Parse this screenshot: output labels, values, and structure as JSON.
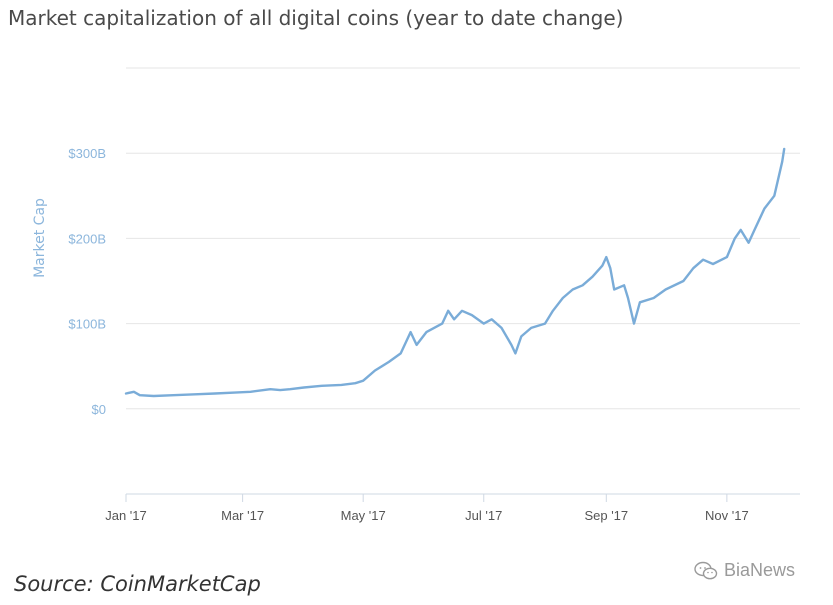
{
  "title": "Market capitalization of all digital coins (year to date change)",
  "source": "Source: CoinMarketCap",
  "watermark": {
    "icon": "wechat-icon",
    "text": "BiaNews"
  },
  "colors": {
    "line": "#7aacd8",
    "grid": "#e6e6e6",
    "y_tick_text": "#8cb6dc",
    "x_tick_text": "#555555",
    "axis": "#cfd8e3"
  },
  "chart_data": {
    "type": "line",
    "title": "Market capitalization of all digital coins (year to date change)",
    "xlabel": "",
    "ylabel": "Market Cap",
    "x_tick_labels": [
      "Jan '17",
      "Mar '17",
      "May '17",
      "Jul '17",
      "Sep '17",
      "Nov '17"
    ],
    "y_ticks": [
      {
        "value": 0,
        "label": "$0"
      },
      {
        "value": 100,
        "label": "$100B"
      },
      {
        "value": 200,
        "label": "$200B"
      },
      {
        "value": 300,
        "label": "$300B"
      }
    ],
    "ylim": [
      -100,
      400
    ],
    "xlim": [
      "2017-01-01",
      "2017-12-08"
    ],
    "grid": true,
    "series": [
      {
        "values_unit": "billion USD",
        "points": [
          [
            "2017-01-01",
            18
          ],
          [
            "2017-01-05",
            20
          ],
          [
            "2017-01-08",
            16
          ],
          [
            "2017-01-15",
            15
          ],
          [
            "2017-01-25",
            16
          ],
          [
            "2017-02-05",
            17
          ],
          [
            "2017-02-15",
            18
          ],
          [
            "2017-02-25",
            19
          ],
          [
            "2017-03-05",
            20
          ],
          [
            "2017-03-15",
            23
          ],
          [
            "2017-03-20",
            22
          ],
          [
            "2017-03-25",
            23
          ],
          [
            "2017-04-01",
            25
          ],
          [
            "2017-04-10",
            27
          ],
          [
            "2017-04-20",
            28
          ],
          [
            "2017-04-27",
            30
          ],
          [
            "2017-05-01",
            33
          ],
          [
            "2017-05-07",
            45
          ],
          [
            "2017-05-14",
            55
          ],
          [
            "2017-05-20",
            65
          ],
          [
            "2017-05-25",
            90
          ],
          [
            "2017-05-28",
            75
          ],
          [
            "2017-06-02",
            90
          ],
          [
            "2017-06-10",
            100
          ],
          [
            "2017-06-13",
            115
          ],
          [
            "2017-06-16",
            105
          ],
          [
            "2017-06-20",
            115
          ],
          [
            "2017-06-25",
            110
          ],
          [
            "2017-07-01",
            100
          ],
          [
            "2017-07-05",
            105
          ],
          [
            "2017-07-10",
            95
          ],
          [
            "2017-07-15",
            75
          ],
          [
            "2017-07-17",
            65
          ],
          [
            "2017-07-20",
            85
          ],
          [
            "2017-07-25",
            95
          ],
          [
            "2017-08-01",
            100
          ],
          [
            "2017-08-05",
            115
          ],
          [
            "2017-08-10",
            130
          ],
          [
            "2017-08-15",
            140
          ],
          [
            "2017-08-20",
            145
          ],
          [
            "2017-08-25",
            155
          ],
          [
            "2017-08-30",
            168
          ],
          [
            "2017-09-01",
            178
          ],
          [
            "2017-09-03",
            165
          ],
          [
            "2017-09-05",
            140
          ],
          [
            "2017-09-10",
            145
          ],
          [
            "2017-09-12",
            130
          ],
          [
            "2017-09-15",
            100
          ],
          [
            "2017-09-18",
            125
          ],
          [
            "2017-09-25",
            130
          ],
          [
            "2017-10-01",
            140
          ],
          [
            "2017-10-10",
            150
          ],
          [
            "2017-10-15",
            165
          ],
          [
            "2017-10-20",
            175
          ],
          [
            "2017-10-25",
            170
          ],
          [
            "2017-11-01",
            178
          ],
          [
            "2017-11-05",
            200
          ],
          [
            "2017-11-08",
            210
          ],
          [
            "2017-11-12",
            195
          ],
          [
            "2017-11-15",
            210
          ],
          [
            "2017-11-20",
            235
          ],
          [
            "2017-11-25",
            250
          ],
          [
            "2017-11-29",
            290
          ],
          [
            "2017-11-30",
            305
          ]
        ]
      }
    ]
  }
}
